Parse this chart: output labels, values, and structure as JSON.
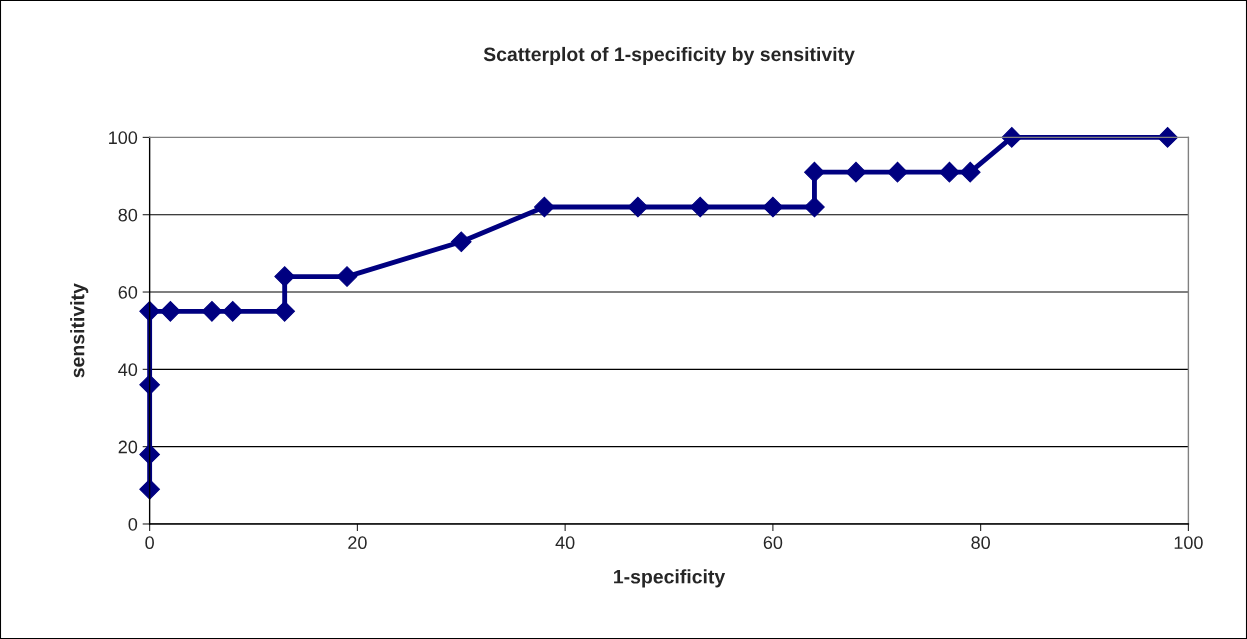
{
  "chart_data": {
    "type": "line",
    "title": "Scatterplot of 1-specificity by sensitivity",
    "xlabel": "1-specificity",
    "ylabel": "sensitivity",
    "x": [
      0,
      0,
      0,
      0,
      2,
      6,
      8,
      13,
      13,
      19,
      30,
      38,
      47,
      53,
      60,
      64,
      64,
      68,
      72,
      77,
      79,
      83,
      98
    ],
    "series": [
      {
        "color": "#000080",
        "values": [
          9,
          18,
          36,
          55,
          55,
          55,
          55,
          55,
          64,
          64,
          73,
          82,
          82,
          82,
          82,
          82,
          91,
          91,
          91,
          91,
          91,
          100,
          100
        ]
      }
    ],
    "xlim": [
      0,
      100
    ],
    "xticks": [
      0,
      20,
      40,
      60,
      80,
      100
    ],
    "ylim": [
      0,
      100
    ],
    "yticks": [
      0,
      20,
      40,
      60,
      80,
      100
    ],
    "grid": "y",
    "marker": "diamond",
    "line_style": "solid"
  }
}
